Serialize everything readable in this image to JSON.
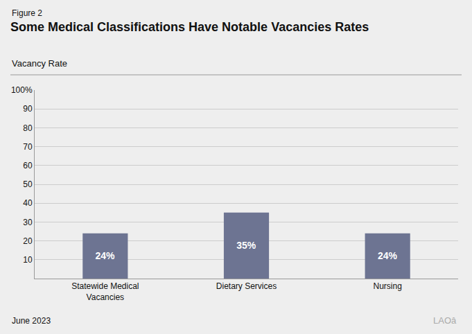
{
  "chart_data": {
    "type": "bar",
    "title": "Some Medical Classifications Have Notable Vacancies Rates",
    "subtitle": "Vacancy Rate",
    "annotations": [
      "Figure 2",
      "June 2023",
      "LAOâ"
    ],
    "categories": [
      "Statewide Medical\nVacancies",
      "Dietary Services",
      "Nursing"
    ],
    "values": [
      24,
      35,
      24
    ],
    "value_labels": [
      "24%",
      "35%",
      "24%"
    ],
    "data_labels": true,
    "color": "#6d7492",
    "ylim": [
      0,
      100
    ],
    "yticks": [
      10,
      20,
      30,
      40,
      50,
      60,
      70,
      80,
      90,
      {
        "value": 100,
        "label": "100%"
      }
    ],
    "grid": true
  }
}
